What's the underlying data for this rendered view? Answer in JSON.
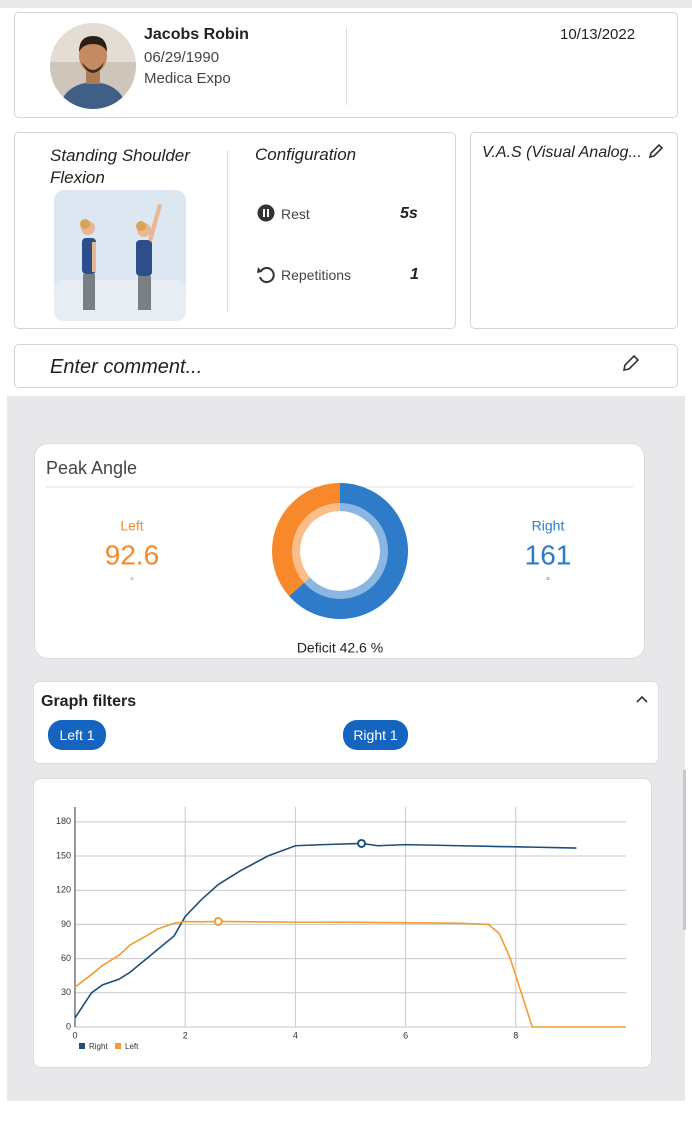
{
  "patient": {
    "name": "Jacobs Robin",
    "birth_date": "06/29/1990",
    "location": "Medica Expo",
    "date": "10/13/2022"
  },
  "exercise": {
    "name": "Standing Shoulder Flexion",
    "config_title": "Configuration",
    "rest_label": "Rest",
    "rest_value": "5s",
    "repetitions_label": "Repetitions",
    "repetitions_value": "1"
  },
  "vas": {
    "title": "V.A.S (Visual Analog..."
  },
  "comment": {
    "placeholder": "Enter comment..."
  },
  "filters": {
    "title": "Graph filters",
    "chips": [
      "Left 1",
      "Right 1"
    ]
  },
  "chart_data": [
    {
      "type": "pie",
      "title": "Peak Angle",
      "categories": [
        "Left",
        "Right"
      ],
      "values": [
        92.6,
        161
      ],
      "unit": "°",
      "colors": [
        "#f7892a",
        "#2d7bc9"
      ],
      "annotation": "Deficit 42.6 %"
    },
    {
      "type": "line",
      "x": [
        0,
        0.3,
        0.5,
        0.8,
        1.0,
        1.3,
        1.5,
        1.8,
        2.0,
        2.3,
        2.6,
        3.0,
        3.5,
        4.0,
        4.5,
        5.2,
        5.5,
        6.0,
        7.0,
        7.5,
        7.7,
        7.9,
        8.1,
        8.3,
        9.1,
        10
      ],
      "series": [
        {
          "name": "Right",
          "color": "#1f4e79",
          "values": [
            8,
            30,
            37,
            42,
            48,
            60,
            68,
            80,
            97,
            112,
            125,
            137,
            150,
            159,
            160,
            161,
            159,
            160,
            159,
            158.5,
            158.3,
            158.2,
            158,
            157.8,
            157,
            null
          ]
        },
        {
          "name": "Left",
          "color": "#f39c34",
          "values": [
            35,
            46,
            54,
            63,
            72,
            80,
            86,
            91,
            92.5,
            92.3,
            92.6,
            92.4,
            92.2,
            92,
            92,
            91.8,
            91.6,
            91.5,
            91,
            90,
            82,
            60,
            30,
            0,
            0,
            0
          ]
        }
      ],
      "xlim": [
        0,
        10
      ],
      "xticks": [
        0,
        2,
        4,
        6,
        8
      ],
      "ylim": [
        0,
        193
      ],
      "yticks": [
        0,
        30,
        60,
        90,
        120,
        150,
        180
      ],
      "grid": true,
      "legend": "bottom-left"
    }
  ]
}
